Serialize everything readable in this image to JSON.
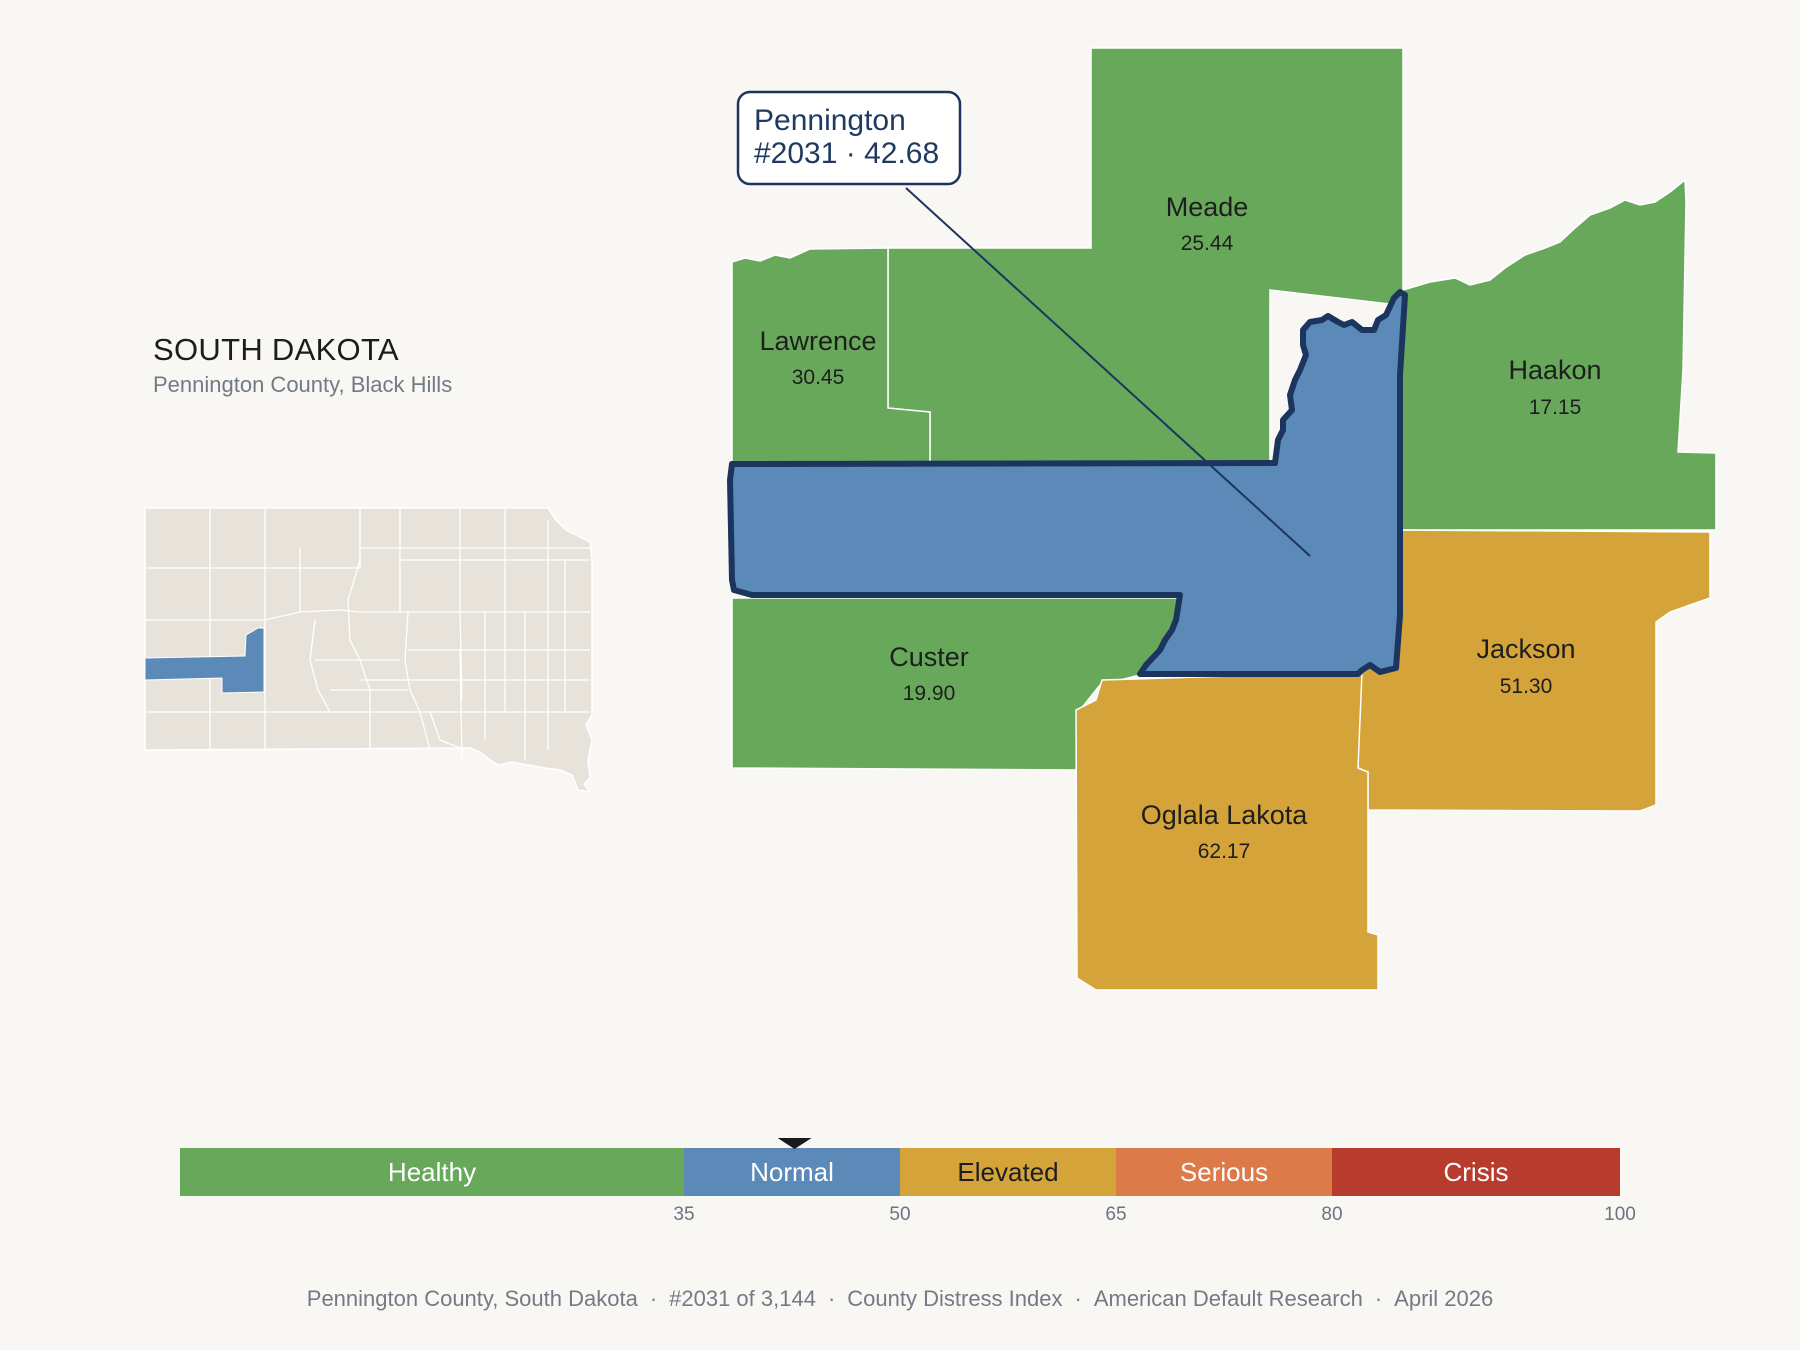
{
  "state": {
    "title": "SOUTH DAKOTA",
    "subtitle": "Pennington County, Black Hills"
  },
  "callout": {
    "name": "Pennington",
    "detail": "#2031 · 42.68"
  },
  "counties": [
    {
      "id": "meade",
      "name": "Meade",
      "value": "25.44",
      "category": "Healthy"
    },
    {
      "id": "lawrence",
      "name": "Lawrence",
      "value": "30.45",
      "category": "Healthy"
    },
    {
      "id": "haakon",
      "name": "Haakon",
      "value": "17.15",
      "category": "Healthy"
    },
    {
      "id": "custer",
      "name": "Custer",
      "value": "19.90",
      "category": "Healthy"
    },
    {
      "id": "jackson",
      "name": "Jackson",
      "value": "51.30",
      "category": "Elevated"
    },
    {
      "id": "oglala",
      "name": "Oglala Lakota",
      "value": "62.17",
      "category": "Elevated"
    },
    {
      "id": "pennington",
      "name": "Pennington",
      "value": "42.68",
      "category": "Normal",
      "highlighted": true
    }
  ],
  "legend": {
    "min": 0,
    "max": 100,
    "marker_value": 42.68,
    "bands": [
      {
        "label": "Healthy",
        "from": 0,
        "to": 35,
        "color": "#67a85a",
        "text_color": "#ffffff"
      },
      {
        "label": "Normal",
        "from": 35,
        "to": 50,
        "color": "#5b89b8",
        "text_color": "#ffffff"
      },
      {
        "label": "Elevated",
        "from": 50,
        "to": 65,
        "color": "#d4a43b",
        "text_color": "#1e1e1e"
      },
      {
        "label": "Serious",
        "from": 65,
        "to": 80,
        "color": "#dc7a4a",
        "text_color": "#ffffff"
      },
      {
        "label": "Crisis",
        "from": 80,
        "to": 100,
        "color": "#b83c2e",
        "text_color": "#ffffff"
      }
    ],
    "ticks": [
      "35",
      "50",
      "65",
      "80",
      "100"
    ]
  },
  "colors": {
    "background": "#f9f7f3",
    "healthy": "#67a85a",
    "normal": "#5b89b8",
    "elevated": "#d4a43b",
    "highlight_outline": "#1c355e",
    "inset_fill": "#e8e3da"
  },
  "footer": {
    "county": "Pennington County, South Dakota",
    "rank": "#2031 of 3,144",
    "index": "County Distress Index",
    "source": "American Default Research",
    "date": "April 2026"
  }
}
